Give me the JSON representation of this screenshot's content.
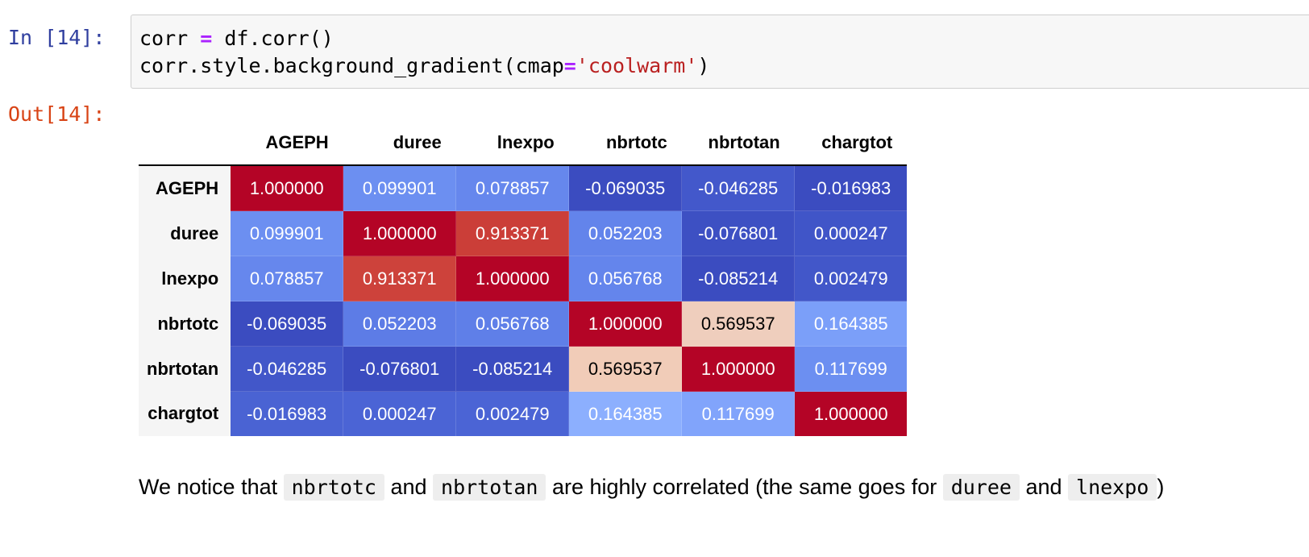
{
  "input_prompt": "In [14]:",
  "output_prompt": "Out[14]:",
  "code": {
    "line1": {
      "a": "corr ",
      "op": "=",
      "b": " df.corr()"
    },
    "line2": {
      "a": "corr.style.background_gradient(cmap",
      "op": "=",
      "str": "'coolwarm'",
      "b": ")"
    }
  },
  "table": {
    "columns": [
      "AGEPH",
      "duree",
      "lnexpo",
      "nbrtotc",
      "nbrtotan",
      "chargtot"
    ],
    "rows": [
      {
        "label": "AGEPH",
        "cells": [
          {
            "text": "1.000000",
            "bg": "#b40426",
            "fg": "#ffffff"
          },
          {
            "text": "0.099901",
            "bg": "#6c8ff1",
            "fg": "#ffffff"
          },
          {
            "text": "0.078857",
            "bg": "#6687ed",
            "fg": "#ffffff"
          },
          {
            "text": "-0.069035",
            "bg": "#3b4cc0",
            "fg": "#ffffff"
          },
          {
            "text": "-0.046285",
            "bg": "#4358cb",
            "fg": "#ffffff"
          },
          {
            "text": "-0.016983",
            "bg": "#3b4cc0",
            "fg": "#ffffff"
          }
        ]
      },
      {
        "label": "duree",
        "cells": [
          {
            "text": "0.099901",
            "bg": "#6c8ff1",
            "fg": "#ffffff"
          },
          {
            "text": "1.000000",
            "bg": "#b40426",
            "fg": "#ffffff"
          },
          {
            "text": "0.913371",
            "bg": "#cb3e38",
            "fg": "#ffffff"
          },
          {
            "text": "0.052203",
            "bg": "#6384eb",
            "fg": "#ffffff"
          },
          {
            "text": "-0.076801",
            "bg": "#3d50c3",
            "fg": "#ffffff"
          },
          {
            "text": "0.000247",
            "bg": "#4055c8",
            "fg": "#ffffff"
          }
        ]
      },
      {
        "label": "lnexpo",
        "cells": [
          {
            "text": "0.078857",
            "bg": "#6687ed",
            "fg": "#ffffff"
          },
          {
            "text": "0.913371",
            "bg": "#cd423b",
            "fg": "#ffffff"
          },
          {
            "text": "1.000000",
            "bg": "#b40426",
            "fg": "#ffffff"
          },
          {
            "text": "0.056768",
            "bg": "#6485ec",
            "fg": "#ffffff"
          },
          {
            "text": "-0.085214",
            "bg": "#3b4cc0",
            "fg": "#ffffff"
          },
          {
            "text": "0.002479",
            "bg": "#4257c9",
            "fg": "#ffffff"
          }
        ]
      },
      {
        "label": "nbrtotc",
        "cells": [
          {
            "text": "-0.069035",
            "bg": "#3b4cc0",
            "fg": "#ffffff"
          },
          {
            "text": "0.052203",
            "bg": "#5d7ce6",
            "fg": "#ffffff"
          },
          {
            "text": "0.056768",
            "bg": "#5f7fe8",
            "fg": "#ffffff"
          },
          {
            "text": "1.000000",
            "bg": "#b40426",
            "fg": "#ffffff"
          },
          {
            "text": "0.569537",
            "bg": "#efcebd",
            "fg": "#000000"
          },
          {
            "text": "0.164385",
            "bg": "#7b9ff9",
            "fg": "#ffffff"
          }
        ]
      },
      {
        "label": "nbrtotan",
        "cells": [
          {
            "text": "-0.046285",
            "bg": "#4257c9",
            "fg": "#ffffff"
          },
          {
            "text": "-0.076801",
            "bg": "#3b4cc0",
            "fg": "#ffffff"
          },
          {
            "text": "-0.085214",
            "bg": "#3b4cc0",
            "fg": "#ffffff"
          },
          {
            "text": "0.569537",
            "bg": "#f1ccb8",
            "fg": "#000000"
          },
          {
            "text": "1.000000",
            "bg": "#b40426",
            "fg": "#ffffff"
          },
          {
            "text": "0.117699",
            "bg": "#6c8ff1",
            "fg": "#ffffff"
          }
        ]
      },
      {
        "label": "chargtot",
        "cells": [
          {
            "text": "-0.016983",
            "bg": "#4a63d3",
            "fg": "#ffffff"
          },
          {
            "text": "0.000247",
            "bg": "#4b64d5",
            "fg": "#ffffff"
          },
          {
            "text": "0.002479",
            "bg": "#4b64d5",
            "fg": "#ffffff"
          },
          {
            "text": "0.164385",
            "bg": "#8caffe",
            "fg": "#ffffff"
          },
          {
            "text": "0.117699",
            "bg": "#81a4fb",
            "fg": "#ffffff"
          },
          {
            "text": "1.000000",
            "bg": "#b40426",
            "fg": "#ffffff"
          }
        ]
      }
    ]
  },
  "note": {
    "t1": "We notice that ",
    "c1": "nbrtotc",
    "t2": " and ",
    "c2": "nbrtotan",
    "t3": " are highly correlated (the same goes for ",
    "c3": "duree",
    "t4": " and ",
    "c4": "lnexpo",
    "t5": ")"
  }
}
